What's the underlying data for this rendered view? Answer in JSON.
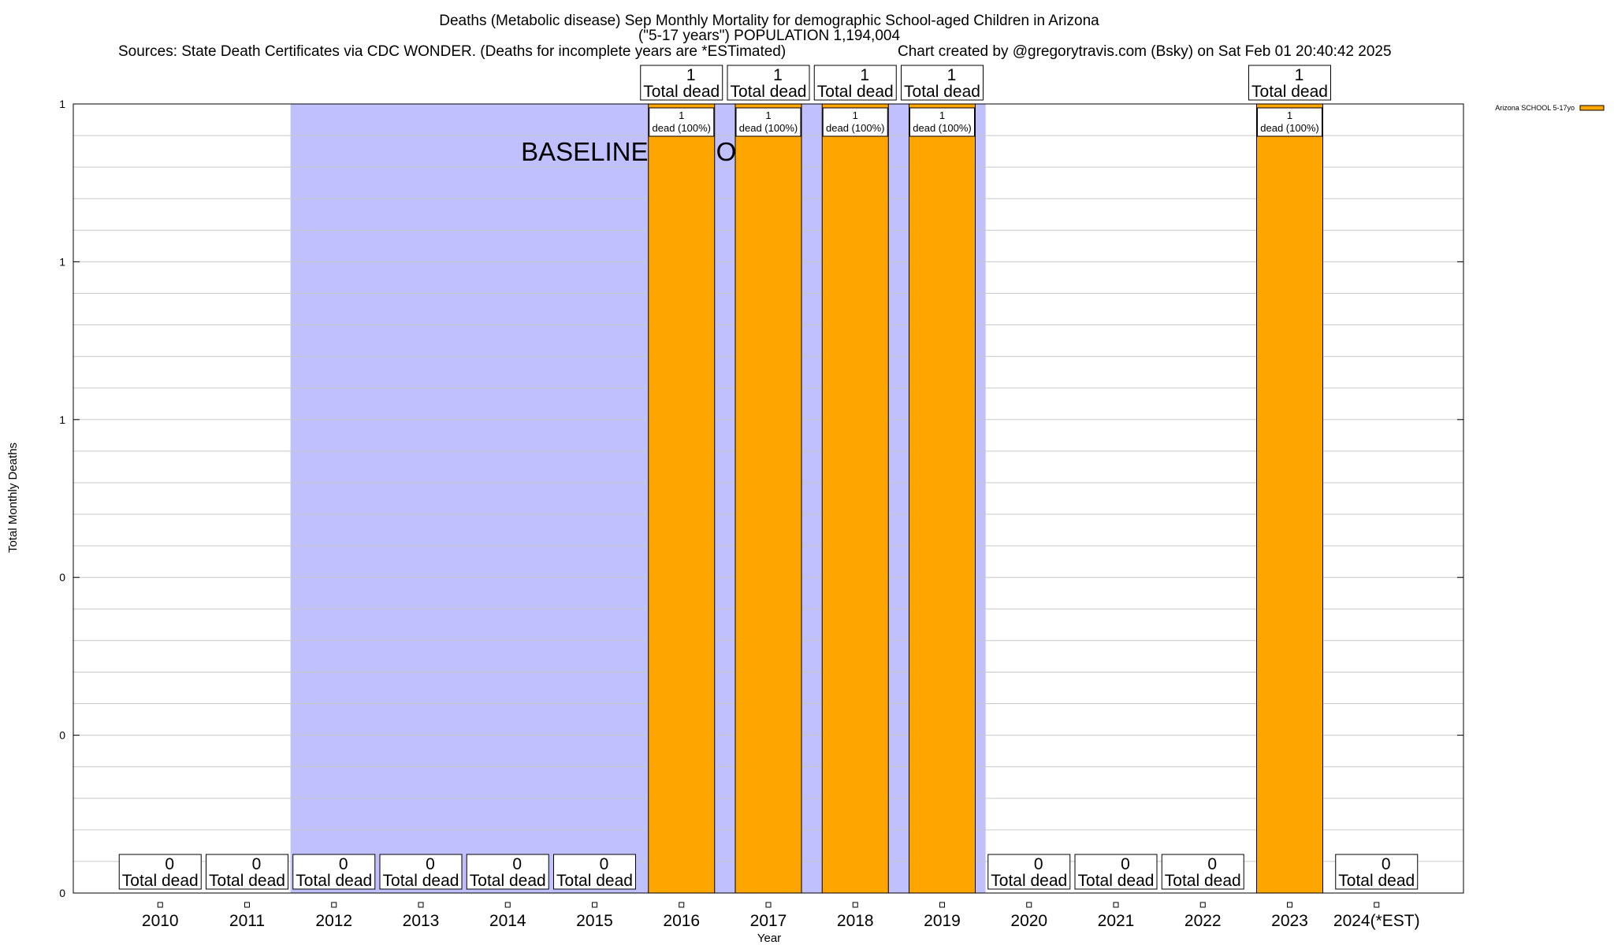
{
  "chart_data": {
    "type": "bar",
    "title_lines": [
      "Deaths (Metabolic disease) Sep Monthly Mortality for demographic School-aged Children in Arizona",
      "(\"5-17 years\") POPULATION 1,194,004"
    ],
    "source_note": "Sources: State Death Certificates via CDC WONDER. (Deaths for incomplete years are *ESTimated)",
    "credit_note": "Chart created by @gregorytravis.com (Bsky) on Sat Feb 01 20:40:42 2025",
    "xlabel": "Year",
    "ylabel": "Total Monthly Deaths",
    "categories": [
      "2010",
      "2011",
      "2012",
      "2013",
      "2014",
      "2015",
      "2016",
      "2017",
      "2018",
      "2019",
      "2020",
      "2021",
      "2022",
      "2023",
      "2024(*EST)"
    ],
    "series": [
      {
        "name": "Arizona SCHOOL 5-17yo",
        "color": "#FFA500",
        "values": [
          0,
          0,
          0,
          0,
          0,
          0,
          1,
          1,
          1,
          1,
          0,
          0,
          0,
          1,
          0
        ]
      }
    ],
    "total_labels": {
      "count": [
        "0",
        "0",
        "0",
        "0",
        "0",
        "0",
        "1",
        "1",
        "1",
        "1",
        "0",
        "0",
        "0",
        "1",
        "0"
      ],
      "text": "Total dead"
    },
    "bar_labels": {
      "count": "1",
      "text": "dead (100%)"
    },
    "ylim": [
      0,
      1
    ],
    "y_tick_labels": [
      "0",
      "0",
      "0",
      "1",
      "1",
      "1"
    ],
    "y_tick_values": [
      0,
      0.2,
      0.4,
      0.6,
      0.8,
      1.0
    ],
    "y_minor_step": 0.04,
    "baseline_period": {
      "label": "BASELINE PERIOD",
      "from_category": "2012",
      "to_category": "2019",
      "color": "#C0C0FF"
    },
    "grid": true,
    "legend_position": "top-right"
  }
}
